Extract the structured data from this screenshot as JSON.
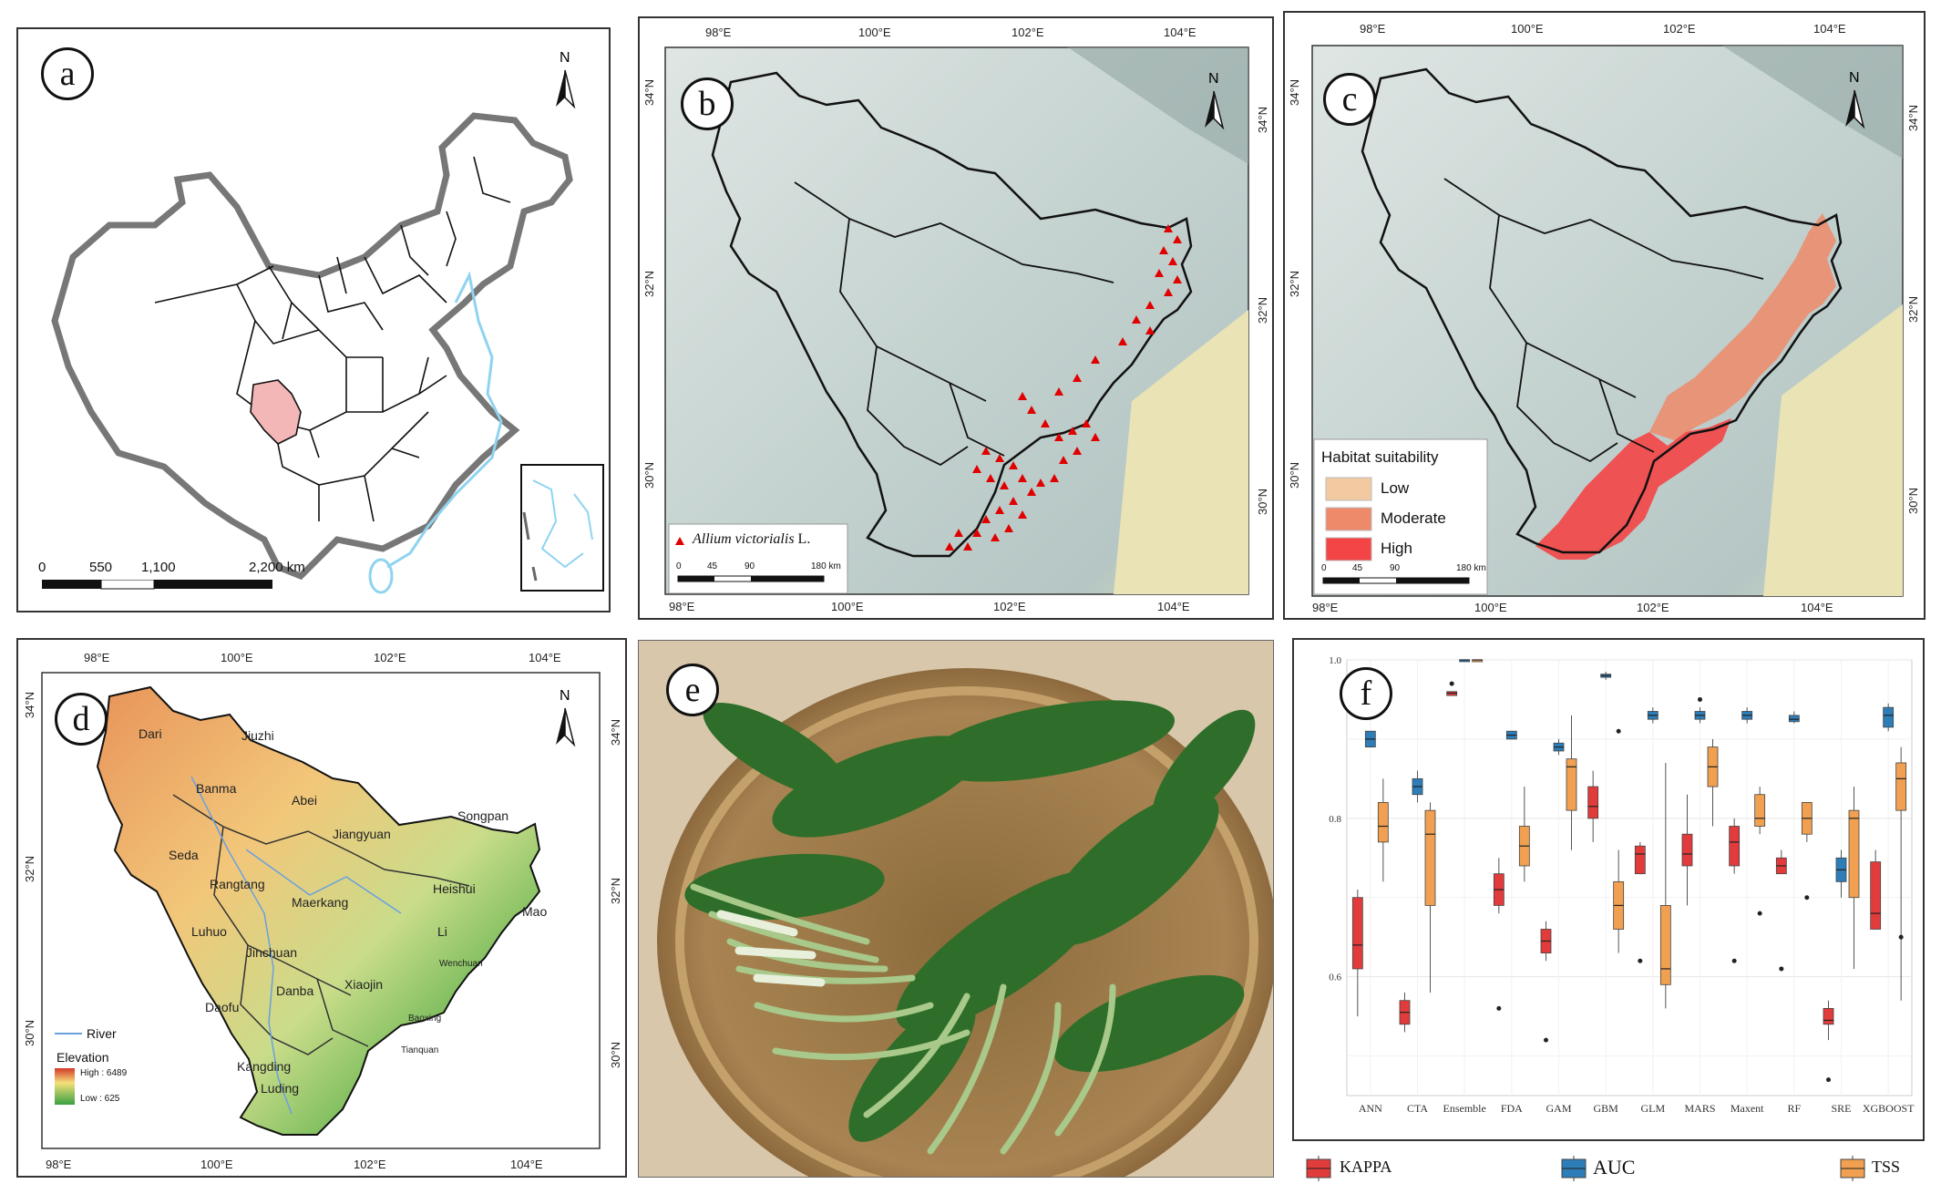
{
  "panels": {
    "a": {
      "letter": "a",
      "north": "N",
      "scale": [
        "0",
        "550",
        "1,100",
        "2,200 km"
      ]
    },
    "b": {
      "letter": "b",
      "north": "N",
      "lon": [
        "98°E",
        "100°E",
        "102°E",
        "104°E"
      ],
      "lat": [
        "34°N",
        "32°N",
        "30°N"
      ],
      "legend_species": "Allium victorialis",
      "legend_author": "L.",
      "scale": [
        "0",
        "45",
        "90",
        "180 km"
      ]
    },
    "c": {
      "letter": "c",
      "north": "N",
      "lon": [
        "98°E",
        "100°E",
        "102°E",
        "104°E"
      ],
      "lat": [
        "34°N",
        "32°N",
        "30°N"
      ],
      "legend_title": "Habitat suitability",
      "legend": [
        "Low",
        "Moderate",
        "High"
      ],
      "legend_colors": [
        "#f2c9a0",
        "#ee8a6a",
        "#f34545"
      ],
      "scale": [
        "0",
        "45",
        "90",
        "180 km"
      ]
    },
    "d": {
      "letter": "d",
      "north": "N",
      "lon": [
        "98°E",
        "100°E",
        "102°E",
        "104°E"
      ],
      "lat": [
        "34°N",
        "32°N",
        "30°N"
      ],
      "counties": [
        "Dari",
        "Jiuzhi",
        "Banma",
        "Abei",
        "Songpan",
        "Jiangyuan",
        "Seda",
        "Rangtang",
        "Maerkang",
        "Heishui",
        "Mao",
        "Luhuo",
        "Jinchuan",
        "Li",
        "Danba",
        "Xiaojin",
        "Wenchuan",
        "Daofu",
        "Baoxing",
        "Kangding",
        "Tianquan",
        "Luding"
      ],
      "river_label": "River",
      "elevation_title": "Elevation",
      "elev_high": "High : 6489",
      "elev_low": "Low : 625"
    },
    "e": {
      "letter": "e"
    },
    "f": {
      "letter": "f"
    }
  },
  "chart_data": {
    "type": "boxplot",
    "categories": [
      "ANN",
      "CTA",
      "Ensemble",
      "FDA",
      "GAM",
      "GBM",
      "GLM",
      "MARS",
      "Maxent",
      "RF",
      "SRE",
      "XGBOOST"
    ],
    "ylim": [
      0.45,
      1.0
    ],
    "yticks": [
      "1.0",
      "0.8",
      "0.6"
    ],
    "series": [
      {
        "name": "KAPPA",
        "color": "#e23b3b",
        "boxes": [
          {
            "min": 0.55,
            "q1": 0.61,
            "median": 0.64,
            "q3": 0.7,
            "max": 0.71,
            "out": []
          },
          {
            "min": 0.53,
            "q1": 0.54,
            "median": 0.555,
            "q3": 0.57,
            "max": 0.58,
            "out": []
          },
          {
            "min": 0.955,
            "q1": 0.955,
            "median": 0.958,
            "q3": 0.96,
            "max": 0.96,
            "out": [
              0.97
            ]
          },
          {
            "min": 0.68,
            "q1": 0.69,
            "median": 0.71,
            "q3": 0.73,
            "max": 0.75,
            "out": [
              0.56
            ]
          },
          {
            "min": 0.62,
            "q1": 0.63,
            "median": 0.645,
            "q3": 0.66,
            "max": 0.67,
            "out": [
              0.52
            ]
          },
          {
            "min": 0.77,
            "q1": 0.8,
            "median": 0.815,
            "q3": 0.84,
            "max": 0.86,
            "out": []
          },
          {
            "min": 0.73,
            "q1": 0.73,
            "median": 0.755,
            "q3": 0.765,
            "max": 0.77,
            "out": [
              0.62
            ]
          },
          {
            "min": 0.69,
            "q1": 0.74,
            "median": 0.755,
            "q3": 0.78,
            "max": 0.83,
            "out": []
          },
          {
            "min": 0.73,
            "q1": 0.74,
            "median": 0.77,
            "q3": 0.79,
            "max": 0.8,
            "out": [
              0.62
            ]
          },
          {
            "min": 0.73,
            "q1": 0.73,
            "median": 0.74,
            "q3": 0.75,
            "max": 0.76,
            "out": [
              0.61
            ]
          },
          {
            "min": 0.52,
            "q1": 0.54,
            "median": 0.545,
            "q3": 0.56,
            "max": 0.57,
            "out": [
              0.47
            ]
          },
          {
            "min": 0.66,
            "q1": 0.66,
            "median": 0.68,
            "q3": 0.745,
            "max": 0.76,
            "out": []
          }
        ]
      },
      {
        "name": "AUC",
        "color": "#2d7db8",
        "boxes": [
          {
            "min": 0.89,
            "q1": 0.89,
            "median": 0.9,
            "q3": 0.91,
            "max": 0.91,
            "out": []
          },
          {
            "min": 0.82,
            "q1": 0.83,
            "median": 0.84,
            "q3": 0.85,
            "max": 0.86,
            "out": []
          },
          {
            "min": 1.0,
            "q1": 1.0,
            "median": 1.0,
            "q3": 1.0,
            "max": 1.0,
            "out": []
          },
          {
            "min": 0.9,
            "q1": 0.9,
            "median": 0.905,
            "q3": 0.91,
            "max": 0.91,
            "out": []
          },
          {
            "min": 0.88,
            "q1": 0.885,
            "median": 0.89,
            "q3": 0.895,
            "max": 0.9,
            "out": []
          },
          {
            "min": 0.975,
            "q1": 0.978,
            "median": 0.98,
            "q3": 0.982,
            "max": 0.985,
            "out": []
          },
          {
            "min": 0.92,
            "q1": 0.925,
            "median": 0.93,
            "q3": 0.935,
            "max": 0.94,
            "out": []
          },
          {
            "min": 0.92,
            "q1": 0.925,
            "median": 0.93,
            "q3": 0.935,
            "max": 0.94,
            "out": [
              0.95
            ]
          },
          {
            "min": 0.92,
            "q1": 0.925,
            "median": 0.93,
            "q3": 0.935,
            "max": 0.94,
            "out": []
          },
          {
            "min": 0.92,
            "q1": 0.922,
            "median": 0.925,
            "q3": 0.93,
            "max": 0.935,
            "out": []
          },
          {
            "min": 0.7,
            "q1": 0.72,
            "median": 0.735,
            "q3": 0.75,
            "max": 0.76,
            "out": []
          },
          {
            "min": 0.91,
            "q1": 0.915,
            "median": 0.93,
            "q3": 0.94,
            "max": 0.945,
            "out": []
          }
        ]
      },
      {
        "name": "TSS",
        "color": "#f0a050",
        "boxes": [
          {
            "min": 0.72,
            "q1": 0.77,
            "median": 0.79,
            "q3": 0.82,
            "max": 0.85,
            "out": []
          },
          {
            "min": 0.58,
            "q1": 0.69,
            "median": 0.78,
            "q3": 0.81,
            "max": 0.82,
            "out": []
          },
          {
            "min": 1.0,
            "q1": 1.0,
            "median": 1.0,
            "q3": 1.0,
            "max": 1.0,
            "out": []
          },
          {
            "min": 0.72,
            "q1": 0.74,
            "median": 0.765,
            "q3": 0.79,
            "max": 0.84,
            "out": []
          },
          {
            "min": 0.76,
            "q1": 0.81,
            "median": 0.865,
            "q3": 0.875,
            "max": 0.93,
            "out": []
          },
          {
            "min": 0.63,
            "q1": 0.66,
            "median": 0.69,
            "q3": 0.72,
            "max": 0.76,
            "out": [
              0.91
            ]
          },
          {
            "min": 0.56,
            "q1": 0.59,
            "median": 0.61,
            "q3": 0.69,
            "max": 0.87,
            "out": []
          },
          {
            "min": 0.79,
            "q1": 0.84,
            "median": 0.865,
            "q3": 0.89,
            "max": 0.9,
            "out": []
          },
          {
            "min": 0.78,
            "q1": 0.79,
            "median": 0.8,
            "q3": 0.83,
            "max": 0.84,
            "out": [
              0.68
            ]
          },
          {
            "min": 0.77,
            "q1": 0.78,
            "median": 0.8,
            "q3": 0.82,
            "max": 0.82,
            "out": [
              0.7
            ]
          },
          {
            "min": 0.61,
            "q1": 0.7,
            "median": 0.8,
            "q3": 0.81,
            "max": 0.84,
            "out": []
          },
          {
            "min": 0.57,
            "q1": 0.81,
            "median": 0.85,
            "q3": 0.87,
            "max": 0.89,
            "out": [
              0.65
            ]
          }
        ]
      }
    ],
    "legend": [
      "KAPPA",
      "AUC",
      "TSS"
    ]
  }
}
